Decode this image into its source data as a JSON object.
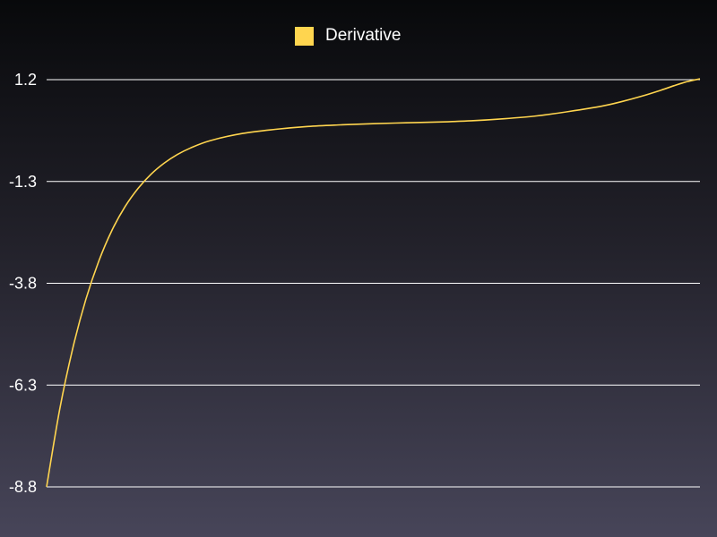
{
  "chart_data": {
    "type": "line",
    "title": "",
    "xlabel": "",
    "ylabel": "",
    "ylim": [
      -8.8,
      1.2
    ],
    "yticks": [
      "1.2",
      "-1.3",
      "-3.8",
      "-6.3",
      "-8.8"
    ],
    "grid": true,
    "legend_position": "top-center",
    "series": [
      {
        "name": "Derivative",
        "color": "#ffd54f",
        "x": [
          0,
          0.02,
          0.04,
          0.06,
          0.08,
          0.1,
          0.12,
          0.14,
          0.16,
          0.18,
          0.2,
          0.22,
          0.25,
          0.3,
          0.35,
          0.4,
          0.45,
          0.5,
          0.55,
          0.6,
          0.65,
          0.7,
          0.75,
          0.8,
          0.85,
          0.88,
          0.91,
          0.94,
          0.96,
          0.98,
          1.0
        ],
        "values": [
          -8.8,
          -6.9,
          -5.4,
          -4.2,
          -3.25,
          -2.5,
          -1.92,
          -1.47,
          -1.12,
          -0.85,
          -0.64,
          -0.48,
          -0.3,
          -0.12,
          -0.02,
          0.05,
          0.09,
          0.12,
          0.14,
          0.16,
          0.19,
          0.24,
          0.31,
          0.42,
          0.55,
          0.66,
          0.79,
          0.94,
          1.05,
          1.15,
          1.22
        ]
      }
    ]
  }
}
